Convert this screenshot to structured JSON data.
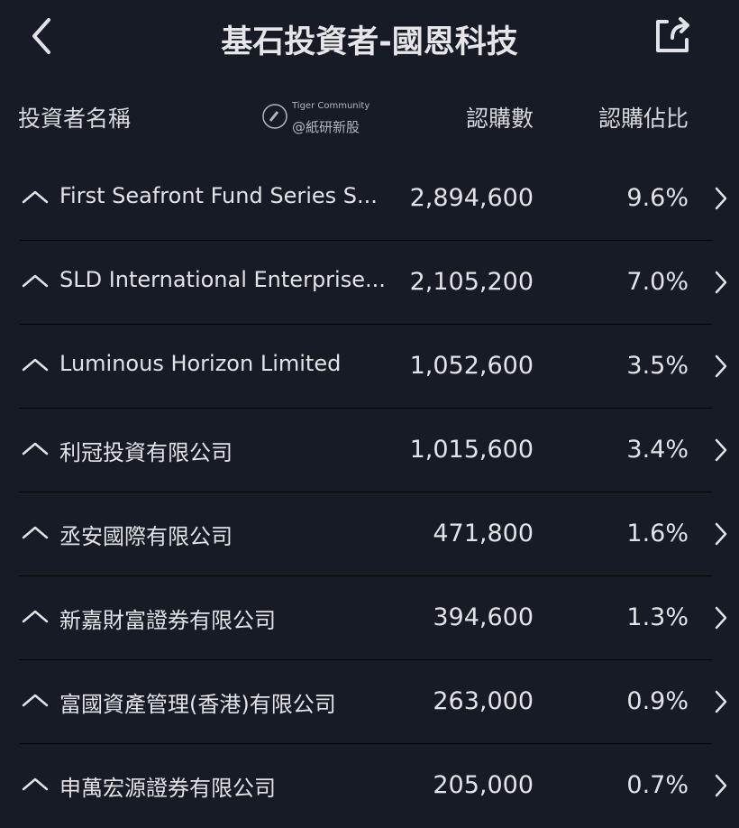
{
  "header": {
    "title": "基石投資者-國恩科技",
    "back_icon": "chevron-left-icon",
    "share_icon": "share-icon"
  },
  "columns": {
    "name": "投資者名稱",
    "shares": "認購數",
    "ratio": "認購佔比"
  },
  "rows": [
    {
      "name": "First Seafront Fund Series S...",
      "shares": "2,894,600",
      "ratio": "9.6%"
    },
    {
      "name": "SLD International Enterprise...",
      "shares": "2,105,200",
      "ratio": "7.0%"
    },
    {
      "name": "Luminous Horizon Limited",
      "shares": "1,052,600",
      "ratio": "3.5%"
    },
    {
      "name": "利冠投資有限公司",
      "shares": "1,015,600",
      "ratio": "3.4%"
    },
    {
      "name": "丞安國際有限公司",
      "shares": "471,800",
      "ratio": "1.6%"
    },
    {
      "name": "新嘉財富證券有限公司",
      "shares": "394,600",
      "ratio": "1.3%"
    },
    {
      "name": "富國資產管理(香港)有限公司",
      "shares": "263,000",
      "ratio": "0.9%"
    },
    {
      "name": "申萬宏源證券有限公司",
      "shares": "205,000",
      "ratio": "0.7%"
    }
  ],
  "watermark": {
    "brand": "Tiger Community",
    "handle": "@紙研新股"
  }
}
